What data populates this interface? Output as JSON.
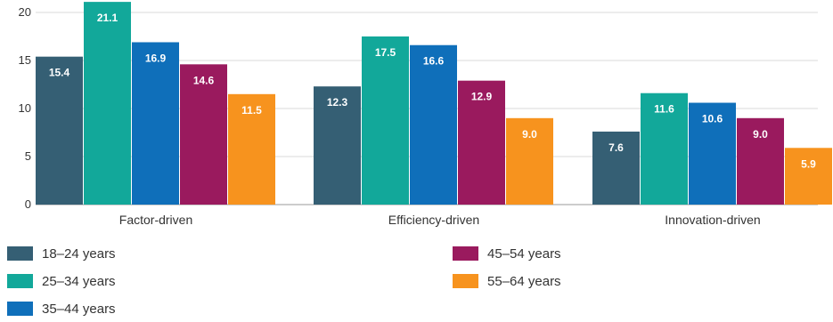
{
  "chart_data": {
    "type": "bar",
    "categories": [
      "Factor-driven",
      "Efficiency-driven",
      "Innovation-driven"
    ],
    "series": [
      {
        "name": "18–24 years",
        "color": "#355f74",
        "values": [
          15.4,
          12.3,
          7.6
        ]
      },
      {
        "name": "25–34 years",
        "color": "#12a89a",
        "values": [
          21.1,
          17.5,
          11.6
        ]
      },
      {
        "name": "35–44 years",
        "color": "#0f6fba",
        "values": [
          16.9,
          16.6,
          10.6
        ]
      },
      {
        "name": "45–54 years",
        "color": "#9a1a5e",
        "values": [
          14.6,
          12.9,
          9.0
        ]
      },
      {
        "name": "55–64 years",
        "color": "#f7931e",
        "values": [
          11.5,
          9.0,
          5.9
        ]
      }
    ],
    "ylim": [
      0,
      20
    ],
    "yticks": [
      0,
      5,
      10,
      15,
      20
    ],
    "grid": true,
    "legend_position": "bottom",
    "title": "",
    "xlabel": "",
    "ylabel": ""
  }
}
